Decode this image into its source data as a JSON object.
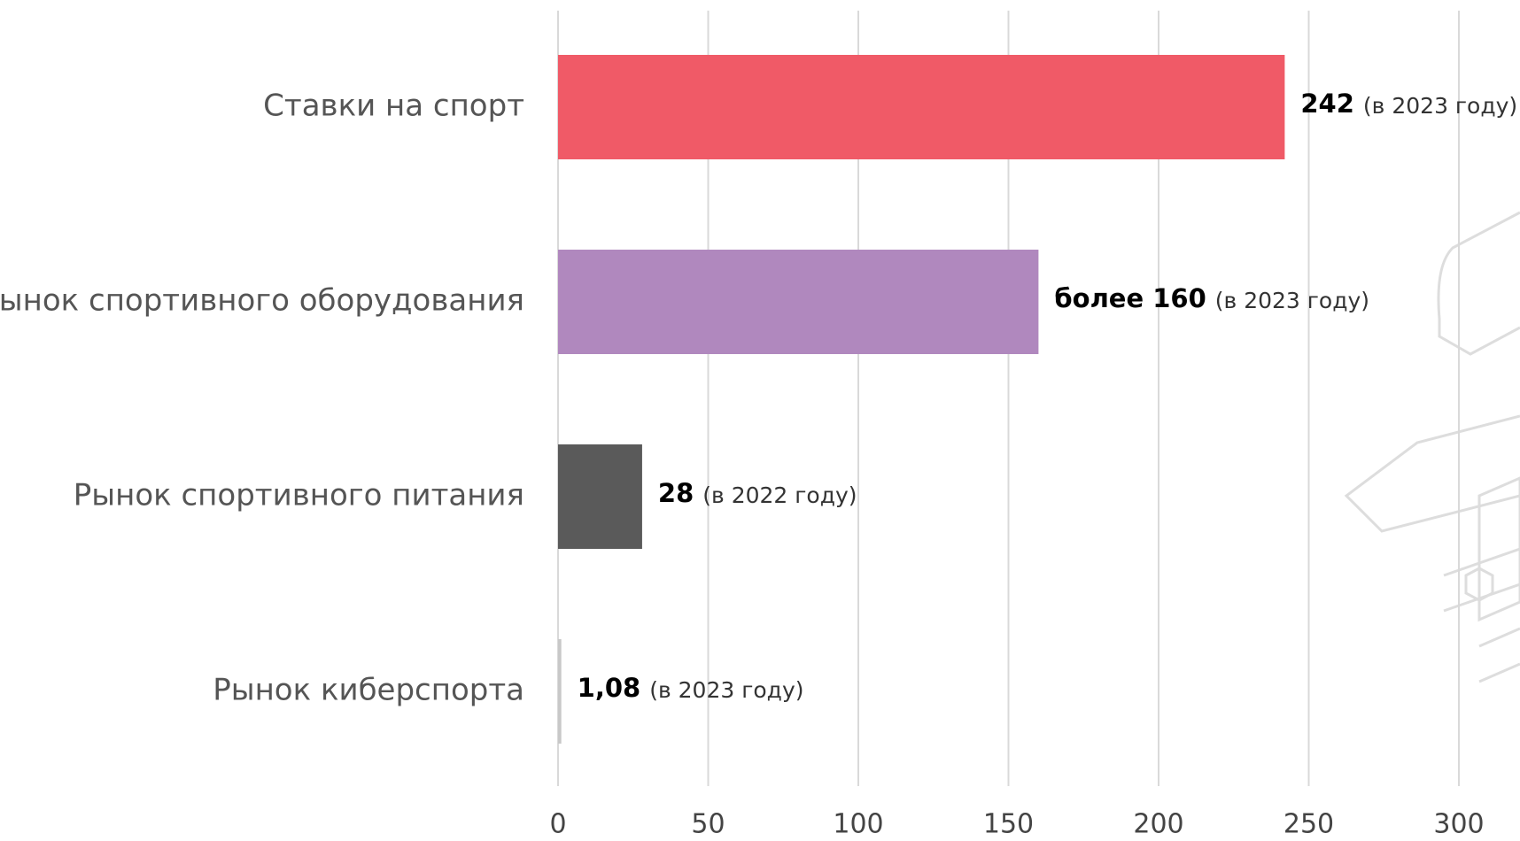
{
  "chart_data": {
    "type": "barh",
    "categories": [
      "Ставки на спорт",
      "Рынок спортивного оборудования",
      "Рынок спортивного питания",
      "Рынок киберспорта"
    ],
    "values": [
      242,
      160,
      28,
      1.08
    ],
    "value_labels": [
      "242",
      "более 160",
      "28",
      "1,08"
    ],
    "value_notes": [
      "(в 2023 году)",
      "(в 2023 году)",
      "(в 2022 году)",
      "(в 2023 году)"
    ],
    "colors": [
      "#f05a67",
      "#b088be",
      "#5a5a5a",
      "#c8c8c8"
    ],
    "xlim": [
      0,
      300
    ],
    "xticks": [
      0,
      50,
      100,
      150,
      200,
      250,
      300
    ],
    "grid": true
  }
}
